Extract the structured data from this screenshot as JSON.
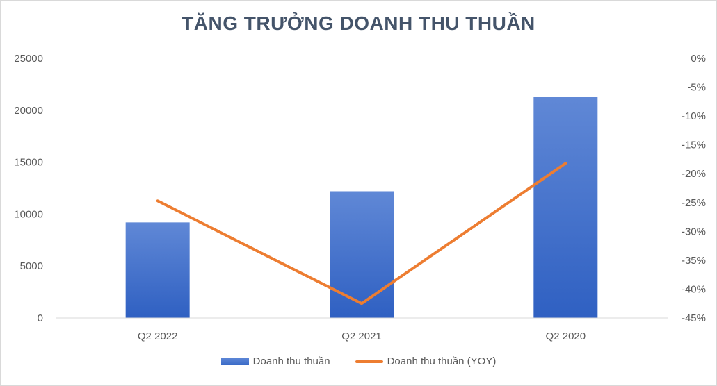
{
  "chart_data": {
    "type": "bar",
    "title": "TĂNG TRƯỞNG DOANH THU THUẦN",
    "categories": [
      "Q2 2022",
      "Q2 2021",
      "Q2 2020"
    ],
    "series": [
      {
        "name": "Doanh thu thuần",
        "type": "bar",
        "axis": "left",
        "color": "#4472c4",
        "values": [
          9200,
          12200,
          21300
        ]
      },
      {
        "name": "Doanh thu thuần (YOY)",
        "type": "line",
        "axis": "right",
        "color": "#ed7d31",
        "values": [
          -24.7,
          -42.5,
          -18.2
        ]
      }
    ],
    "y_left": {
      "min": 0,
      "max": 25000,
      "ticks": [
        0,
        5000,
        10000,
        15000,
        20000,
        25000
      ],
      "tick_labels": [
        "0",
        "5000",
        "10000",
        "15000",
        "20000",
        "25000"
      ]
    },
    "y_right": {
      "min": -45,
      "max": 0,
      "ticks": [
        0,
        -5,
        -10,
        -15,
        -20,
        -25,
        -30,
        -35,
        -40,
        -45
      ],
      "tick_labels": [
        "0%",
        "-5%",
        "-10%",
        "-15%",
        "-20%",
        "-25%",
        "-30%",
        "-35%",
        "-40%",
        "-45%"
      ]
    },
    "grid": false,
    "legend_position": "bottom"
  }
}
